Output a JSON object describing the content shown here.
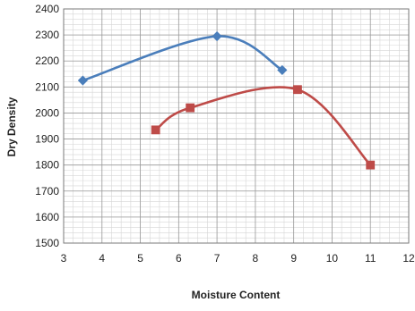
{
  "chart_data": {
    "type": "line",
    "title": "",
    "xlabel": "Moisture Content",
    "ylabel": "Dry Density",
    "xlim": [
      3,
      12
    ],
    "ylim": [
      1500,
      2400
    ],
    "xticks": [
      "3",
      "4",
      "5",
      "6",
      "7",
      "8",
      "9",
      "10",
      "11",
      "12"
    ],
    "yticks": [
      "1500",
      "1600",
      "1700",
      "1800",
      "1900",
      "2000",
      "2100",
      "2200",
      "2300",
      "2400"
    ],
    "grid": true,
    "minor_grid": true,
    "legend": "none",
    "smooth": true,
    "series": [
      {
        "marker": "diamond",
        "color": "#4a7ebb",
        "points": [
          {
            "x": 3.5,
            "y": 2125
          },
          {
            "x": 7.0,
            "y": 2295
          },
          {
            "x": 8.7,
            "y": 2165
          }
        ]
      },
      {
        "marker": "square",
        "color": "#be4b48",
        "points": [
          {
            "x": 5.4,
            "y": 1935
          },
          {
            "x": 6.3,
            "y": 2020
          },
          {
            "x": 9.1,
            "y": 2090
          },
          {
            "x": 11.0,
            "y": 1800
          }
        ]
      }
    ]
  }
}
